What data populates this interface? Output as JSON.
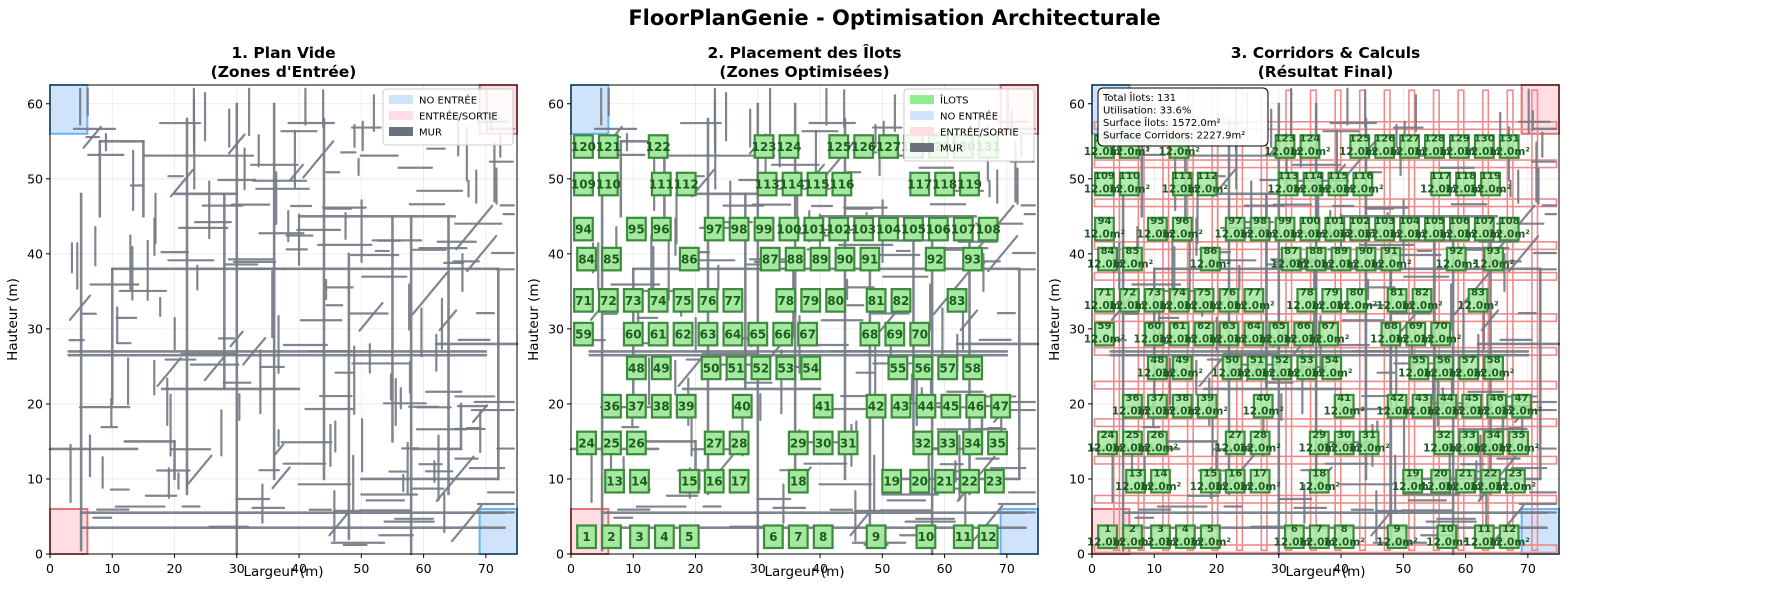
{
  "figure": {
    "suptitle": "FloorPlanGenie - Optimisation Architecturale"
  },
  "colors": {
    "wall": "#757b85",
    "no_entry_fill": "#cfe3fa",
    "no_entry_edge": "#64b5f6",
    "entry_fill": "#ffdde2",
    "entry_edge": "#e57373",
    "ilot_fill": "#a5e8a0",
    "ilot_edge": "#3d8b3d",
    "ilot_text": "#1b5e20",
    "corridor_edge": "#ef8a8a",
    "grid": "#e8e8e8"
  },
  "chart_data": [
    {
      "type": "floor-plan",
      "title_line1": "1. Plan Vide",
      "title_line2": "(Zones d'Entrée)",
      "xlabel": "Largeur (m)",
      "ylabel": "Hauteur (m)",
      "xlim": [
        0,
        75
      ],
      "ylim": [
        0,
        62.5
      ],
      "xticks": [
        0,
        10,
        20,
        30,
        40,
        50,
        60,
        70
      ],
      "yticks": [
        0,
        10,
        20,
        30,
        40,
        50,
        60
      ],
      "grid": true,
      "legend": {
        "placement": "top-right",
        "entries": [
          {
            "label": "NO ENTRÉE",
            "color": "#cfe3fa"
          },
          {
            "label": "ENTRÉE/SORTIE",
            "color": "#ffdde2"
          },
          {
            "label": "MUR",
            "color": "#6b717a"
          }
        ]
      },
      "zones": [
        {
          "kind": "no_entry",
          "x0": 0,
          "y0": 56,
          "x1": 6,
          "y1": 62.5
        },
        {
          "kind": "entry",
          "x0": 69,
          "y0": 56,
          "x1": 75,
          "y1": 62.5
        },
        {
          "kind": "entry",
          "x0": 0,
          "y0": 0,
          "x1": 6,
          "y1": 6
        },
        {
          "kind": "no_entry",
          "x0": 69,
          "y0": 0,
          "x1": 75,
          "y1": 6
        }
      ]
    },
    {
      "type": "floor-plan",
      "title_line1": "2. Placement des Îlots",
      "title_line2": "(Zones Optimisées)",
      "xlabel": "Largeur (m)",
      "ylabel": "Hauteur (m)",
      "xlim": [
        0,
        75
      ],
      "ylim": [
        0,
        62.5
      ],
      "xticks": [
        0,
        10,
        20,
        30,
        40,
        50,
        60,
        70
      ],
      "yticks": [
        0,
        10,
        20,
        30,
        40,
        50,
        60
      ],
      "grid": true,
      "legend": {
        "placement": "top-right",
        "entries": [
          {
            "label": "ÎLOTS",
            "color": "#90ee90"
          },
          {
            "label": "NO ENTRÉE",
            "color": "#cfe3fa"
          },
          {
            "label": "ENTRÉE/SORTIE",
            "color": "#ffdde2"
          },
          {
            "label": "MUR",
            "color": "#6b717a"
          }
        ]
      },
      "zones": [
        {
          "kind": "no_entry",
          "x0": 0,
          "y0": 56,
          "x1": 6,
          "y1": 62.5
        },
        {
          "kind": "entry",
          "x0": 69,
          "y0": 56,
          "x1": 75,
          "y1": 62.5
        },
        {
          "kind": "entry",
          "x0": 0,
          "y0": 0,
          "x1": 6,
          "y1": 6
        },
        {
          "kind": "no_entry",
          "x0": 69,
          "y0": 0,
          "x1": 75,
          "y1": 6
        }
      ],
      "ilots_ref": "ilots"
    },
    {
      "type": "floor-plan",
      "title_line1": "3. Corridors & Calculs",
      "title_line2": "(Résultat Final)",
      "xlabel": "Largeur (m)",
      "ylabel": "Hauteur (m)",
      "xlim": [
        0,
        75
      ],
      "ylim": [
        0,
        62.5
      ],
      "xticks": [
        0,
        10,
        20,
        30,
        40,
        50,
        60,
        70
      ],
      "yticks": [
        0,
        10,
        20,
        30,
        40,
        50,
        60
      ],
      "grid": true,
      "zones": [
        {
          "kind": "no_entry",
          "x0": 0,
          "y0": 56,
          "x1": 6,
          "y1": 62.5
        },
        {
          "kind": "entry",
          "x0": 69,
          "y0": 56,
          "x1": 75,
          "y1": 62.5
        },
        {
          "kind": "entry",
          "x0": 0,
          "y0": 0,
          "x1": 6,
          "y1": 6
        },
        {
          "kind": "no_entry",
          "x0": 69,
          "y0": 0,
          "x1": 75,
          "y1": 6
        }
      ],
      "ilots_ref": "ilots",
      "ilot_area_label": "12.0m²",
      "stats": [
        "Total Îlots: 131",
        "Utilisation: 33.6%",
        "Surface Îlots: 1572.0m²",
        "Surface Corridors: 2227.9m²"
      ]
    }
  ],
  "ilots": {
    "size_m": 3,
    "rows": [
      {
        "y": 0.8,
        "items": [
          [
            1,
            1
          ],
          [
            2,
            5
          ],
          [
            3,
            9.5
          ],
          [
            4,
            13.5
          ],
          [
            5,
            17.5
          ],
          [
            6,
            31
          ],
          [
            7,
            35
          ],
          [
            8,
            39
          ],
          [
            9,
            47.5
          ],
          [
            10,
            55.5
          ],
          [
            11,
            61.5
          ],
          [
            12,
            65.5
          ]
        ]
      },
      {
        "y": 8.2,
        "items": [
          [
            13,
            5.5
          ],
          [
            14,
            9.5
          ],
          [
            15,
            17.5
          ],
          [
            16,
            21.5
          ],
          [
            17,
            25.5
          ],
          [
            18,
            35
          ],
          [
            19,
            50
          ],
          [
            20,
            54.5
          ],
          [
            21,
            58.5
          ],
          [
            22,
            62.5
          ],
          [
            23,
            66.5
          ]
        ]
      },
      {
        "y": 13.3,
        "items": [
          [
            24,
            1
          ],
          [
            25,
            5
          ],
          [
            26,
            9
          ],
          [
            27,
            21.5
          ],
          [
            28,
            25.5
          ],
          [
            29,
            35
          ],
          [
            30,
            39
          ],
          [
            31,
            43
          ],
          [
            32,
            55
          ],
          [
            33,
            59
          ],
          [
            34,
            63
          ],
          [
            35,
            67
          ]
        ]
      },
      {
        "y": 18.2,
        "items": [
          [
            36,
            5
          ],
          [
            37,
            9
          ],
          [
            38,
            13
          ],
          [
            39,
            17
          ],
          [
            40,
            26
          ],
          [
            41,
            39
          ],
          [
            42,
            47.5
          ],
          [
            43,
            51.5
          ],
          [
            44,
            55.5
          ],
          [
            45,
            59.5
          ],
          [
            46,
            63.5
          ],
          [
            47,
            67.5
          ]
        ]
      },
      {
        "y": 23.3,
        "items": [
          [
            48,
            9
          ],
          [
            49,
            13
          ],
          [
            50,
            21
          ],
          [
            51,
            25
          ],
          [
            52,
            29
          ],
          [
            53,
            33
          ],
          [
            54,
            37
          ],
          [
            55,
            51
          ],
          [
            56,
            55
          ],
          [
            57,
            59
          ],
          [
            58,
            63
          ]
        ]
      },
      {
        "y": 27.8,
        "items": [
          [
            59,
            0.5
          ],
          [
            60,
            8.5
          ],
          [
            61,
            12.5
          ],
          [
            62,
            16.5
          ],
          [
            63,
            20.5
          ],
          [
            64,
            24.5
          ],
          [
            65,
            28.5
          ],
          [
            66,
            32.5
          ],
          [
            67,
            36.5
          ],
          [
            68,
            46.5
          ],
          [
            69,
            50.5
          ],
          [
            70,
            54.5
          ]
        ]
      },
      {
        "y": 32.3,
        "items": [
          [
            71,
            0.5
          ],
          [
            72,
            4.5
          ],
          [
            73,
            8.5
          ],
          [
            74,
            12.5
          ],
          [
            75,
            16.5
          ],
          [
            76,
            20.5
          ],
          [
            77,
            24.5
          ],
          [
            78,
            33
          ],
          [
            79,
            37
          ],
          [
            80,
            41
          ],
          [
            81,
            47.5
          ],
          [
            82,
            51.5
          ],
          [
            83,
            60.5
          ]
        ]
      },
      {
        "y": 37.8,
        "items": [
          [
            84,
            1
          ],
          [
            85,
            5
          ],
          [
            86,
            17.5
          ],
          [
            87,
            30.5
          ],
          [
            88,
            34.5
          ],
          [
            89,
            38.5
          ],
          [
            90,
            42.5
          ],
          [
            91,
            46.5
          ],
          [
            92,
            57
          ],
          [
            93,
            63
          ]
        ]
      },
      {
        "y": 41.8,
        "items": [
          [
            94,
            0.5
          ],
          [
            95,
            9
          ],
          [
            96,
            13
          ],
          [
            97,
            21.5
          ],
          [
            98,
            25.5
          ],
          [
            99,
            29.5
          ],
          [
            100,
            33.5
          ],
          [
            101,
            37.5
          ],
          [
            102,
            41.5
          ],
          [
            103,
            45.5
          ],
          [
            104,
            49.5
          ],
          [
            105,
            53.5
          ],
          [
            106,
            57.5
          ],
          [
            107,
            61.5
          ],
          [
            108,
            65.5
          ]
        ]
      },
      {
        "y": 47.8,
        "items": [
          [
            109,
            0.5
          ],
          [
            110,
            4.5
          ],
          [
            111,
            13
          ],
          [
            112,
            17
          ],
          [
            113,
            30
          ],
          [
            114,
            34
          ],
          [
            115,
            38
          ],
          [
            116,
            42
          ],
          [
            117,
            54.5
          ],
          [
            118,
            58.5
          ],
          [
            119,
            62.5
          ]
        ]
      },
      {
        "y": 52.8,
        "items": [
          [
            120,
            0.5
          ],
          [
            121,
            4.5
          ],
          [
            122,
            12.5
          ],
          [
            123,
            29.5
          ],
          [
            124,
            33.5
          ],
          [
            125,
            41.5
          ],
          [
            126,
            45.5
          ],
          [
            127,
            49.5
          ],
          [
            128,
            53.5
          ],
          [
            129,
            57.5
          ],
          [
            130,
            61.5
          ],
          [
            131,
            65.5
          ]
        ]
      }
    ]
  }
}
